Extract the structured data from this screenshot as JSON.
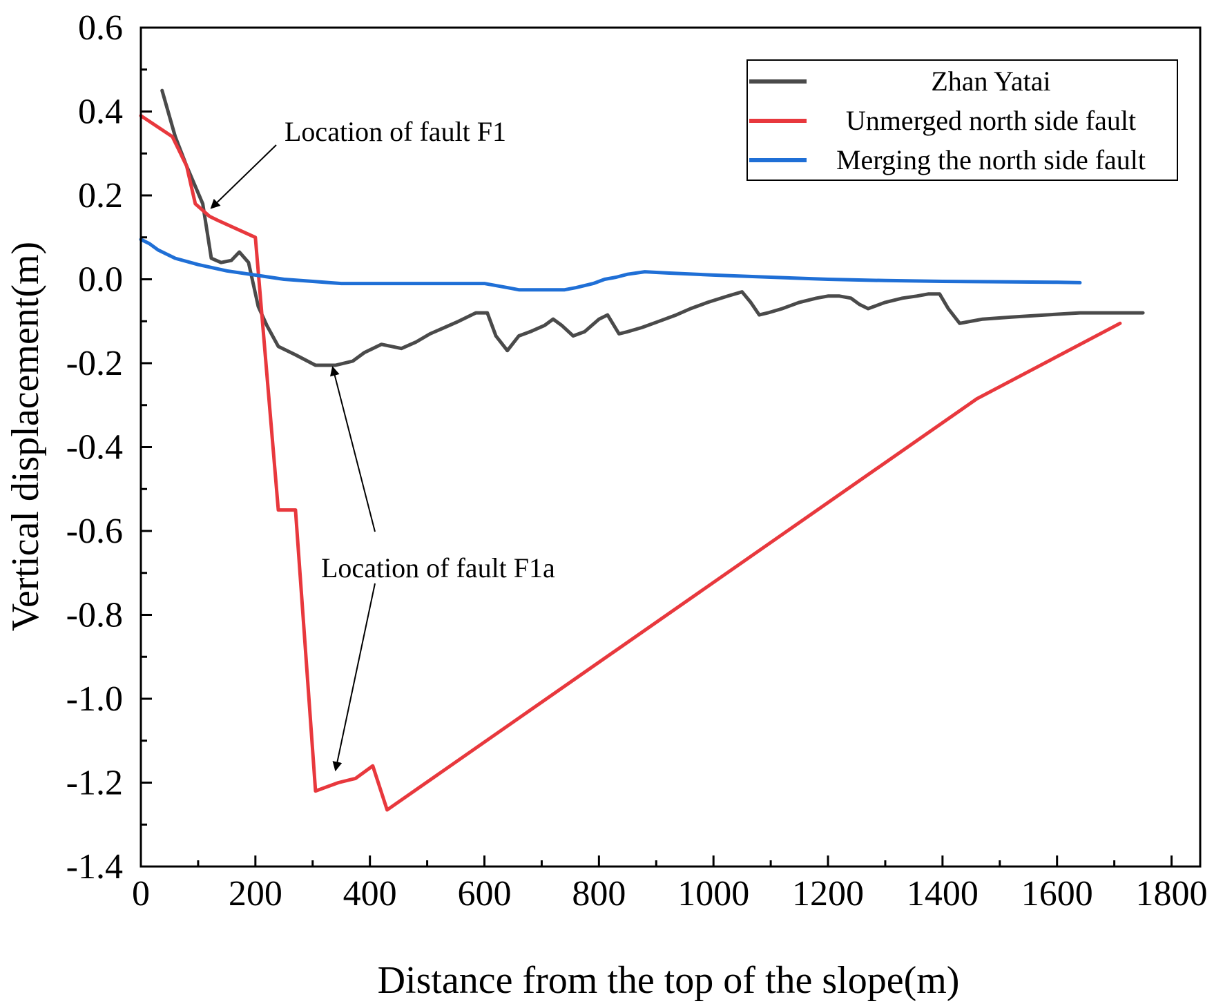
{
  "chart_data": {
    "type": "line",
    "title": "",
    "xlabel": "Distance from the top of the slope(m)",
    "ylabel": "Vertical displacement(m)",
    "xlim": [
      0,
      1850
    ],
    "ylim": [
      -1.4,
      0.6
    ],
    "xticks": [
      0,
      200,
      400,
      600,
      800,
      1000,
      1200,
      1400,
      1600,
      1800
    ],
    "xtick_labels": [
      "0",
      "200",
      "400",
      "600",
      "800",
      "1000",
      "1200",
      "1400",
      "1600",
      "1800"
    ],
    "yticks": [
      0.6,
      0.4,
      0.2,
      0.0,
      -0.2,
      -0.4,
      -0.6,
      -0.8,
      -1.0,
      -1.2,
      -1.4
    ],
    "ytick_labels": [
      "0.6",
      "0.4",
      "0.2",
      "0.0",
      "-0.2",
      "-0.4",
      "-0.6",
      "-0.8",
      "-1.0",
      "-1.2",
      "-1.4"
    ],
    "grid": false,
    "legend_position": "top-right",
    "series": [
      {
        "name": "Zhan Yatai",
        "color": "#4a4a4a",
        "x": [
          37,
          60,
          80,
          108,
          123,
          140,
          158,
          172,
          188,
          205,
          220,
          240,
          270,
          305,
          340,
          370,
          390,
          420,
          455,
          480,
          505,
          530,
          555,
          585,
          605,
          620,
          640,
          660,
          680,
          705,
          720,
          735,
          755,
          775,
          800,
          815,
          835,
          850,
          875,
          905,
          935,
          960,
          990,
          1025,
          1050,
          1065,
          1080,
          1095,
          1120,
          1150,
          1180,
          1200,
          1220,
          1240,
          1255,
          1270,
          1300,
          1330,
          1355,
          1375,
          1395,
          1410,
          1430,
          1470,
          1520,
          1580,
          1640,
          1700,
          1750
        ],
        "y": [
          0.45,
          0.34,
          0.27,
          0.18,
          0.05,
          0.04,
          0.045,
          0.065,
          0.04,
          -0.065,
          -0.11,
          -0.16,
          -0.18,
          -0.205,
          -0.205,
          -0.195,
          -0.175,
          -0.155,
          -0.165,
          -0.15,
          -0.13,
          -0.115,
          -0.1,
          -0.08,
          -0.08,
          -0.135,
          -0.17,
          -0.135,
          -0.125,
          -0.11,
          -0.095,
          -0.11,
          -0.135,
          -0.125,
          -0.095,
          -0.085,
          -0.13,
          -0.125,
          -0.115,
          -0.1,
          -0.085,
          -0.07,
          -0.055,
          -0.04,
          -0.03,
          -0.055,
          -0.085,
          -0.08,
          -0.07,
          -0.055,
          -0.045,
          -0.04,
          -0.04,
          -0.045,
          -0.06,
          -0.07,
          -0.055,
          -0.045,
          -0.04,
          -0.035,
          -0.035,
          -0.07,
          -0.105,
          -0.095,
          -0.09,
          -0.085,
          -0.08,
          -0.08,
          -0.08
        ]
      },
      {
        "name": "Unmerged north side fault",
        "color": "#e8383d",
        "x": [
          0,
          55,
          80,
          95,
          120,
          135,
          200,
          240,
          270,
          305,
          345,
          375,
          405,
          430,
          1460,
          1710
        ],
        "y": [
          0.39,
          0.34,
          0.27,
          0.18,
          0.15,
          0.14,
          0.1,
          -0.55,
          -0.55,
          -1.22,
          -1.2,
          -1.19,
          -1.16,
          -1.265,
          -0.285,
          -0.105
        ]
      },
      {
        "name": "Merging the north side fault",
        "color": "#1f6fd6",
        "x": [
          0,
          15,
          30,
          60,
          100,
          150,
          200,
          250,
          300,
          350,
          400,
          450,
          500,
          550,
          600,
          620,
          640,
          660,
          690,
          720,
          740,
          760,
          790,
          810,
          830,
          850,
          880,
          920,
          1000,
          1100,
          1200,
          1300,
          1400,
          1500,
          1600,
          1640
        ],
        "y": [
          0.095,
          0.085,
          0.07,
          0.05,
          0.035,
          0.02,
          0.01,
          0.0,
          -0.005,
          -0.01,
          -0.01,
          -0.01,
          -0.01,
          -0.01,
          -0.01,
          -0.015,
          -0.02,
          -0.025,
          -0.025,
          -0.025,
          -0.025,
          -0.02,
          -0.01,
          0.0,
          0.005,
          0.012,
          0.018,
          0.015,
          0.01,
          0.005,
          0.0,
          -0.003,
          -0.005,
          -0.006,
          -0.007,
          -0.008
        ]
      }
    ],
    "annotations": [
      {
        "text": "Location of fault F1",
        "target": [
          123,
          0.17
        ]
      },
      {
        "text": "Location of fault F1a",
        "targets": [
          [
            335,
            -0.21
          ],
          [
            340,
            -1.17
          ]
        ]
      }
    ]
  }
}
